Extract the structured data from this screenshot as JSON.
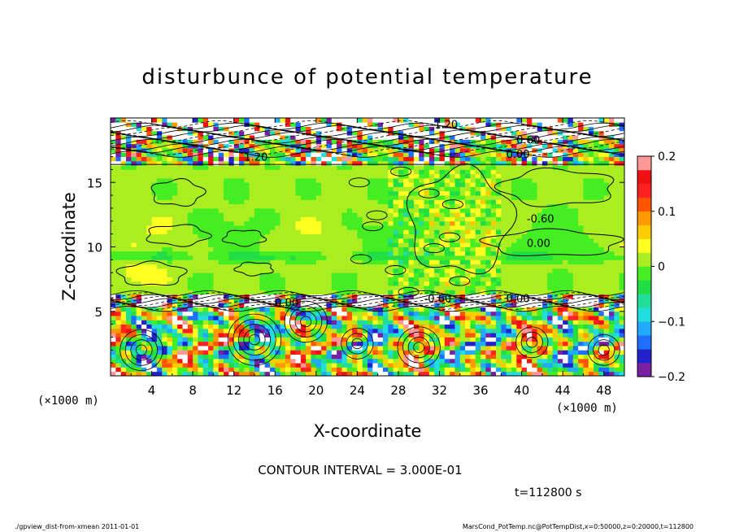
{
  "chart_data": {
    "type": "heatmap",
    "title": "disturbunce of potential temperature",
    "xlabel": "X-coordinate",
    "ylabel": "Z-coordinate",
    "x_unit_left": "(×1000 m)",
    "x_unit_right": "(×1000 m)",
    "xlim": [
      0,
      50
    ],
    "ylim": [
      0,
      20
    ],
    "x_ticks": [
      4,
      8,
      12,
      16,
      20,
      24,
      28,
      32,
      36,
      40,
      44,
      48
    ],
    "y_ticks": [
      5,
      10,
      15
    ],
    "colorbar": {
      "range": [
        -0.2,
        0.2
      ],
      "ticks": [
        {
          "value": 0.2,
          "label": "0.2"
        },
        {
          "value": 0.1,
          "label": "0.1"
        },
        {
          "value": 0,
          "label": "0"
        },
        {
          "value": -0.1,
          "label": "−0.1"
        },
        {
          "value": -0.2,
          "label": "−0.2"
        }
      ],
      "colors": [
        "#7a1fa2",
        "#2222cc",
        "#1f6fff",
        "#22aaff",
        "#22dddd",
        "#22dd99",
        "#22dd44",
        "#44ee22",
        "#aaee22",
        "#ffff22",
        "#ffcc00",
        "#ff9900",
        "#ff5500",
        "#ff2222",
        "#ee1111",
        "#ff9999"
      ]
    },
    "contour_labels": [
      "1.20",
      "0.60",
      "0.00",
      "0.00",
      "0.00",
      "-0.60",
      "1.20",
      "0.00",
      "-0.60"
    ],
    "contour_interval_text": "CONTOUR INTERVAL = 3.000E-01",
    "time_text": "t=112800 s"
  },
  "footer": {
    "left": "./gpview_dist-from-xmean  2011-01-01",
    "right": "MarsCond_PotTemp.nc@PotTempDist,x=0:50000,z=0:20000,t=112800"
  }
}
